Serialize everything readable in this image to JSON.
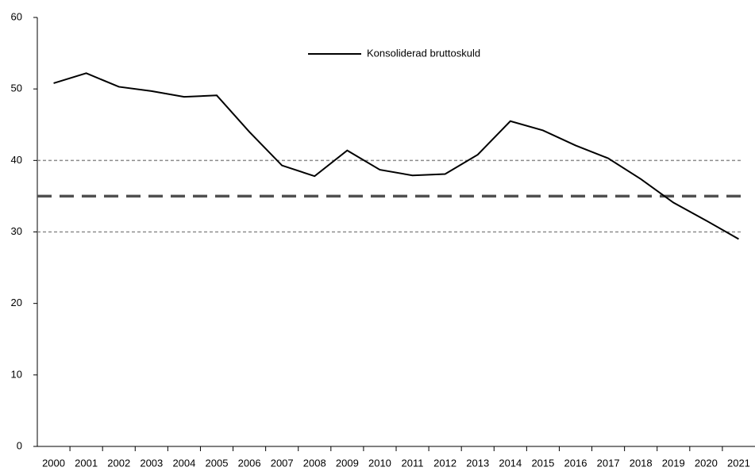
{
  "chart_data": {
    "type": "line",
    "categories": [
      "2000",
      "2001",
      "2002",
      "2003",
      "2004",
      "2005",
      "2006",
      "2007",
      "2008",
      "2009",
      "2010",
      "2011",
      "2012",
      "2013",
      "2014",
      "2015",
      "2016",
      "2017",
      "2018",
      "2019",
      "2020",
      "2021"
    ],
    "series": [
      {
        "name": "Konsoliderad bruttoskuld",
        "color": "#000000",
        "values": [
          50.8,
          52.2,
          50.3,
          49.7,
          48.9,
          49.1,
          44.0,
          39.3,
          37.8,
          41.4,
          38.7,
          37.9,
          38.1,
          40.8,
          45.5,
          44.2,
          42.1,
          40.3,
          37.4,
          34.1,
          31.6,
          29.0
        ]
      }
    ],
    "reference_lines": [
      {
        "value": 40,
        "style": "dotted",
        "color": "#8c8c8c"
      },
      {
        "value": 35,
        "style": "dashed",
        "color": "#505050"
      },
      {
        "value": 30,
        "style": "dotted",
        "color": "#8c8c8c"
      }
    ],
    "ylim": [
      0,
      60
    ],
    "yticks": [
      0,
      10,
      20,
      30,
      40,
      50,
      60
    ],
    "grid": false,
    "legend": "top"
  }
}
